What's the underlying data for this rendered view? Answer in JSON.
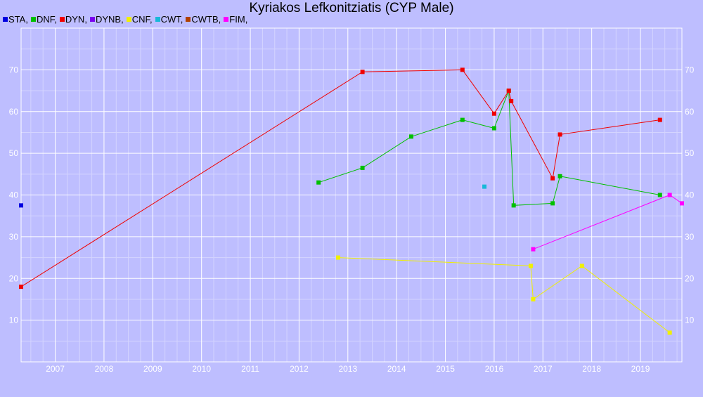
{
  "chart_data": {
    "type": "line",
    "title": "Kyriakos Lefkonitziatis (CYP Male)",
    "xlabel": "",
    "ylabel": "",
    "xlim": [
      2006.3,
      2019.85
    ],
    "ylim": [
      0,
      80
    ],
    "x_ticks": [
      "2007",
      "2008",
      "2009",
      "2010",
      "2011",
      "2012",
      "2013",
      "2014",
      "2015",
      "2016",
      "2017",
      "2018",
      "2019"
    ],
    "y_ticks": [
      "10",
      "20",
      "30",
      "40",
      "50",
      "60",
      "70"
    ],
    "grid": true,
    "legend_position": "top-left",
    "series": [
      {
        "name": "STA",
        "color": "#0000e0",
        "points": [
          [
            2006.3,
            37.5
          ]
        ]
      },
      {
        "name": "DNF",
        "color": "#00c000",
        "points": [
          [
            2012.4,
            43
          ],
          [
            2013.3,
            46.5
          ],
          [
            2014.3,
            54
          ],
          [
            2015.35,
            58
          ],
          [
            2016.0,
            56
          ],
          [
            2016.3,
            65
          ],
          [
            2016.4,
            37.5
          ],
          [
            2017.2,
            38
          ],
          [
            2017.35,
            44.5
          ],
          [
            2019.4,
            40
          ]
        ]
      },
      {
        "name": "DYN",
        "color": "#f00000",
        "points": [
          [
            2006.3,
            18
          ],
          [
            2013.3,
            69.5
          ],
          [
            2015.35,
            70
          ],
          [
            2016.0,
            59.5
          ],
          [
            2016.3,
            65
          ],
          [
            2016.35,
            62.5
          ],
          [
            2017.2,
            44
          ],
          [
            2017.35,
            54.5
          ],
          [
            2019.4,
            58
          ]
        ]
      },
      {
        "name": "DYNB",
        "color": "#7a00f0",
        "points": []
      },
      {
        "name": "CNF",
        "color": "#f0f000",
        "points": [
          [
            2012.8,
            25
          ],
          [
            2016.75,
            23
          ],
          [
            2016.8,
            15
          ],
          [
            2017.8,
            23
          ],
          [
            2019.6,
            7
          ]
        ]
      },
      {
        "name": "CWT",
        "color": "#18b8d8",
        "points": [
          [
            2015.8,
            42
          ]
        ]
      },
      {
        "name": "CWTB",
        "color": "#b04000",
        "points": []
      },
      {
        "name": "FIM",
        "color": "#ff00ff",
        "points": [
          [
            2016.8,
            27
          ],
          [
            2019.6,
            40
          ],
          [
            2019.85,
            38
          ]
        ]
      }
    ]
  }
}
